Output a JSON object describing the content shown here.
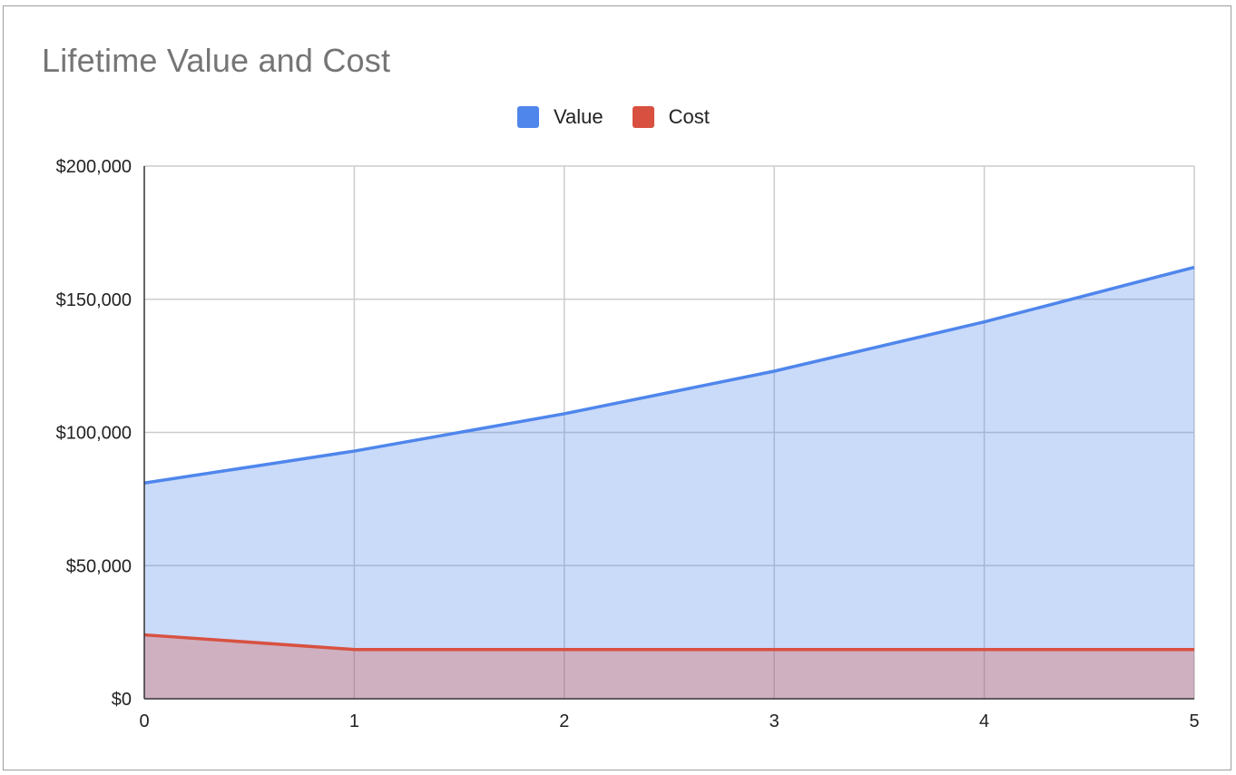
{
  "chart_data": {
    "type": "area",
    "title": "Lifetime Value and Cost",
    "xlabel": "",
    "ylabel": "",
    "x": [
      0,
      1,
      2,
      3,
      4,
      5
    ],
    "series": [
      {
        "name": "Value",
        "color": "#4f86ec",
        "fill": "#c9d9f6",
        "values": [
          81000,
          93000,
          107000,
          123000,
          141500,
          162000
        ]
      },
      {
        "name": "Cost",
        "color": "#d85140",
        "fill": "#cdaabe",
        "values": [
          24000,
          18500,
          18500,
          18500,
          18500,
          18500
        ]
      }
    ],
    "ylim": [
      0,
      200000
    ],
    "xlim": [
      0,
      5
    ],
    "yticks": [
      {
        "value": 0,
        "label": "$0"
      },
      {
        "value": 50000,
        "label": "$50,000"
      },
      {
        "value": 100000,
        "label": "$100,000"
      },
      {
        "value": 150000,
        "label": "$150,000"
      },
      {
        "value": 200000,
        "label": "$200,000"
      }
    ],
    "xticks": [
      {
        "value": 0,
        "label": "0"
      },
      {
        "value": 1,
        "label": "1"
      },
      {
        "value": 2,
        "label": "2"
      },
      {
        "value": 3,
        "label": "3"
      },
      {
        "value": 4,
        "label": "4"
      },
      {
        "value": 5,
        "label": "5"
      }
    ],
    "grid": true,
    "legend_position": "top"
  }
}
